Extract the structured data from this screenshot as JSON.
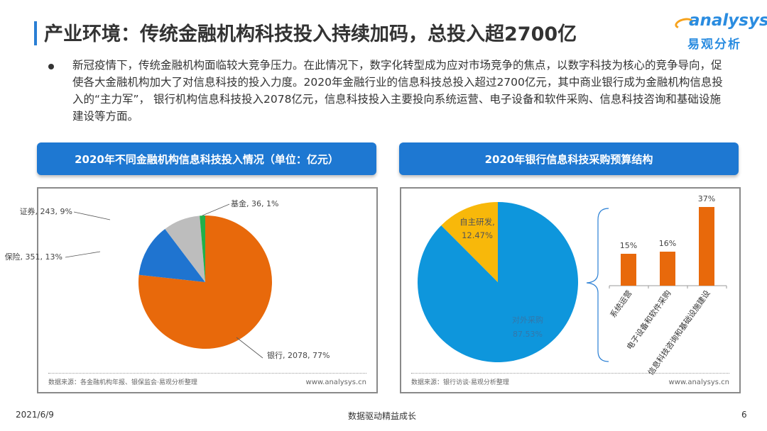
{
  "header": {
    "title": "产业环境：传统金融机构科技投入持续加码，总投入超2700亿",
    "logo_en": "analysys",
    "logo_cn": "易观分析"
  },
  "intro": "新冠疫情下，传统金融机构面临较大竞争压力。在此情况下，数字化转型成为应对市场竞争的焦点，以数字科技为核心的竞争导向，促使各大金融机构加大了对信息科技的投入力度。2020年金融行业的信息科技总投入超过2700亿元，其中商业银行成为金融机构信息投入的“主力军”， 银行机构信息科技投入2078亿元，信息科技投入主要投向系统运营、电子设备和软件采购、信息科技咨询和基础设施建设等方面。",
  "left": {
    "header": "2020年不同金融机构信息科技投入情况（单位：亿元）",
    "source": "数据来源：各金融机构年报、银保监会·易观分析整理",
    "url": "www.analysys.cn"
  },
  "right": {
    "header": "2020年银行信息科技采购预算结构",
    "source": "数据来源：银行访谈·易观分析整理",
    "url": "www.analysys.cn"
  },
  "chart_data": [
    {
      "type": "pie",
      "title": "2020年不同金融机构信息科技投入情况（单位：亿元）",
      "categories": [
        "银行",
        "保险",
        "证券",
        "基金"
      ],
      "values": [
        2078,
        351,
        243,
        36
      ],
      "percents": [
        77,
        13,
        9,
        1
      ],
      "labels": [
        "银行, 2078, 77%",
        "保险, 351, 13%",
        "证券, 243, 9%",
        "基金, 36, 1%"
      ],
      "colors": [
        "#e8690b",
        "#1f74d0",
        "#bdbdbd",
        "#22b04a"
      ]
    },
    {
      "type": "pie",
      "title": "2020年银行信息科技采购预算结构",
      "categories": [
        "对外采购",
        "自主研发"
      ],
      "values": [
        87.53,
        12.47
      ],
      "labels": [
        [
          "对外采购",
          "87.53%"
        ],
        [
          "自主研发,",
          "12.47%"
        ]
      ],
      "colors": [
        "#0e96dc",
        "#f8b80a"
      ]
    },
    {
      "type": "bar",
      "categories": [
        "系统运营",
        "电子设备和软件采购",
        "信息科技咨询和基础设施建设"
      ],
      "values": [
        15,
        16,
        37
      ],
      "value_labels": [
        "15%",
        "16%",
        "37%"
      ],
      "color": "#e8690b",
      "unit": "%"
    }
  ],
  "footer": {
    "date": "2021/6/9",
    "center": "数据驱动精益成长",
    "page": "6"
  }
}
